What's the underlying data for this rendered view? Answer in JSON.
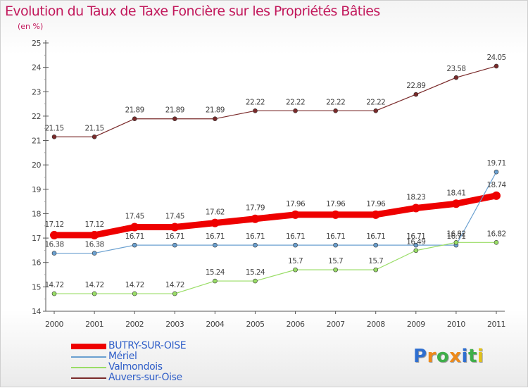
{
  "header": {
    "title": "Evolution du Taux de Taxe Foncière sur les Propriétés Bâties",
    "subtitle": "(en %)"
  },
  "chart_data": {
    "type": "line",
    "title": "Evolution du Taux de Taxe Foncière sur les Propriétés Bâties",
    "ylabel": "(en %)",
    "xlabel": "",
    "x": [
      "2000",
      "2001",
      "2002",
      "2003",
      "2004",
      "2005",
      "2006",
      "2007",
      "2008",
      "2009",
      "2010",
      "2011"
    ],
    "ylim": [
      14,
      25
    ],
    "yticks": [
      "14",
      "15",
      "16",
      "17",
      "18",
      "19",
      "20",
      "21",
      "22",
      "23",
      "24",
      "25"
    ],
    "grid": false,
    "legend_position": "bottom-left",
    "series": [
      {
        "name": "BUTRY-SUR-OISE",
        "color": "#ee0000",
        "values": [
          17.12,
          17.12,
          17.45,
          17.45,
          17.62,
          17.79,
          17.96,
          17.96,
          17.96,
          18.23,
          18.41,
          18.74
        ],
        "labels": [
          "17.12",
          "17.12",
          "17.45",
          "17.45",
          "17.62",
          "17.79",
          "17.96",
          "17.96",
          "17.96",
          "18.23",
          "18.41",
          "18.74"
        ]
      },
      {
        "name": "Mériel",
        "color": "#6aa0d0",
        "values": [
          16.38,
          16.38,
          16.71,
          16.71,
          16.71,
          16.71,
          16.71,
          16.71,
          16.71,
          16.71,
          16.71,
          19.71
        ],
        "labels": [
          "16.38",
          "16.38",
          "16.71",
          "16.71",
          "16.71",
          "16.71",
          "16.71",
          "16.71",
          "16.71",
          "16.71",
          "16.71",
          "19.71"
        ]
      },
      {
        "name": "Valmondois",
        "color": "#99dd66",
        "values": [
          14.72,
          14.72,
          14.72,
          14.72,
          15.24,
          15.24,
          15.7,
          15.7,
          15.7,
          16.49,
          16.82,
          16.82
        ],
        "labels": [
          "14.72",
          "14.72",
          "14.72",
          "14.72",
          "15.24",
          "15.24",
          "15.7",
          "15.7",
          "15.7",
          "16.49",
          "16.82",
          "16.82"
        ]
      },
      {
        "name": "Auvers-sur-Oise",
        "color": "#7a2a2a",
        "values": [
          21.15,
          21.15,
          21.89,
          21.89,
          21.89,
          22.22,
          22.22,
          22.22,
          22.22,
          22.89,
          23.58,
          24.05
        ],
        "labels": [
          "21.15",
          "21.15",
          "21.89",
          "21.89",
          "21.89",
          "22.22",
          "22.22",
          "22.22",
          "22.22",
          "22.89",
          "23.58",
          "24.05"
        ]
      }
    ]
  },
  "logo": {
    "letters": [
      "P",
      "r",
      "o",
      "x",
      "i",
      "t",
      "i"
    ],
    "colors": [
      "#2f6fd0",
      "#ee8a1a",
      "#3fae4a",
      "#ee8a1a",
      "#2f6fd0",
      "#3fae4a",
      "#e2c21a"
    ]
  }
}
